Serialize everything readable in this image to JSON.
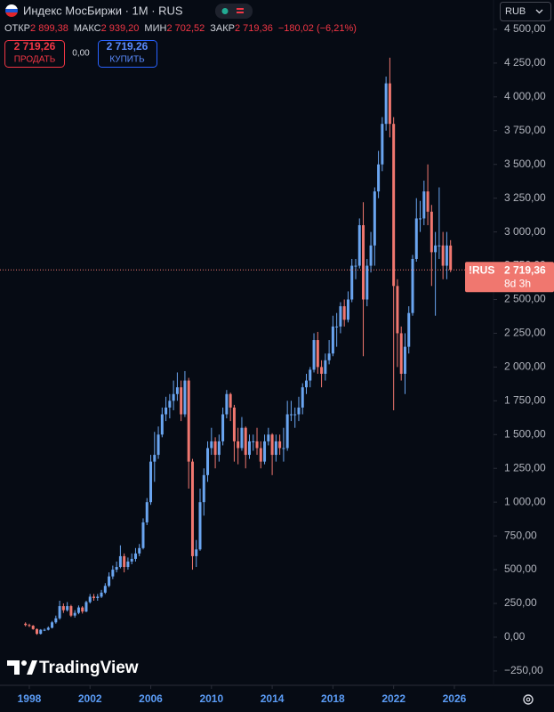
{
  "header": {
    "title": "Индекс МосБиржи · 1М · RUS",
    "ohlc": [
      {
        "label": "ОТКР",
        "value": "2 899,38"
      },
      {
        "label": "МАКС",
        "value": "2 939,20"
      },
      {
        "label": "МИН",
        "value": "2 702,52"
      },
      {
        "label": "ЗАКР",
        "value": "2 719,36"
      }
    ],
    "change": "−180,02 (−6,21%)",
    "sell": {
      "price": "2 719,26",
      "label": "ПРОДАТЬ"
    },
    "spread": "0,00",
    "buy": {
      "price": "2 719,26",
      "label": "КУПИТЬ"
    },
    "currency": "RUB",
    "price_tag": {
      "symbol": "!RUS",
      "price": "2 719,36",
      "countdown": "8d 3h"
    },
    "logo": "TradingView"
  },
  "chart_data": {
    "type": "candlestick",
    "up_color": "#6aa5f0",
    "down_color": "#f0776f",
    "grid": false,
    "x": [
      1997.75,
      1998,
      1998.25,
      1998.5,
      1998.75,
      1999,
      1999.25,
      1999.5,
      1999.75,
      2000,
      2000.25,
      2000.5,
      2000.75,
      2001,
      2001.25,
      2001.5,
      2001.75,
      2002,
      2002.25,
      2002.5,
      2002.75,
      2003,
      2003.25,
      2003.5,
      2003.75,
      2004,
      2004.25,
      2004.5,
      2004.75,
      2005,
      2005.25,
      2005.5,
      2005.75,
      2006,
      2006.25,
      2006.5,
      2006.75,
      2007,
      2007.25,
      2007.5,
      2007.75,
      2008,
      2008.25,
      2008.5,
      2008.75,
      2009,
      2009.25,
      2009.5,
      2009.75,
      2010,
      2010.25,
      2010.5,
      2010.75,
      2011,
      2011.25,
      2011.5,
      2011.75,
      2012,
      2012.25,
      2012.5,
      2012.75,
      2013,
      2013.25,
      2013.5,
      2013.75,
      2014,
      2014.25,
      2014.5,
      2014.75,
      2015,
      2015.25,
      2015.5,
      2015.75,
      2016,
      2016.25,
      2016.5,
      2016.75,
      2017,
      2017.25,
      2017.5,
      2017.75,
      2018,
      2018.25,
      2018.5,
      2018.75,
      2019,
      2019.25,
      2019.5,
      2019.75,
      2020,
      2020.25,
      2020.5,
      2020.75,
      2021,
      2021.25,
      2021.5,
      2021.75,
      2022,
      2022.25,
      2022.5,
      2022.75,
      2023,
      2023.25,
      2023.5,
      2023.75,
      2024,
      2024.25,
      2024.5,
      2024.75,
      2025,
      2025.25,
      2025.5,
      2025.75
    ],
    "open": [
      100,
      90,
      85,
      60,
      25,
      55,
      55,
      70,
      110,
      140,
      230,
      200,
      230,
      160,
      180,
      220,
      190,
      260,
      300,
      290,
      300,
      330,
      380,
      450,
      500,
      520,
      600,
      520,
      560,
      580,
      620,
      660,
      850,
      1000,
      1300,
      1350,
      1500,
      1650,
      1700,
      1750,
      1800,
      1850,
      1650,
      1900,
      1300,
      600,
      650,
      1000,
      1200,
      1400,
      1450,
      1350,
      1450,
      1650,
      1800,
      1700,
      1450,
      1400,
      1550,
      1350,
      1450,
      1450,
      1400,
      1300,
      1450,
      1500,
      1350,
      1450,
      1400,
      1400,
      1650,
      1650,
      1650,
      1700,
      1850,
      1900,
      1980,
      2200,
      2000,
      1950,
      2050,
      2100,
      2300,
      2300,
      2450,
      2350,
      2500,
      2750,
      2750,
      3050,
      2500,
      2750,
      2900,
      3300,
      3500,
      3800,
      4100,
      3800,
      2600,
      2250,
      1950,
      2150,
      2400,
      2800,
      3100,
      3100,
      3300,
      3150,
      2850,
      2900,
      2900,
      2750,
      2899.38
    ],
    "high": [
      110,
      100,
      90,
      65,
      60,
      65,
      80,
      120,
      160,
      270,
      250,
      260,
      240,
      200,
      235,
      230,
      270,
      320,
      320,
      320,
      350,
      400,
      480,
      530,
      560,
      680,
      620,
      590,
      620,
      660,
      690,
      880,
      1030,
      1350,
      1520,
      1560,
      1700,
      1780,
      1800,
      1900,
      1960,
      1900,
      1970,
      1920,
      1320,
      720,
      1100,
      1250,
      1450,
      1550,
      1480,
      1500,
      1700,
      1830,
      1810,
      1720,
      1550,
      1630,
      1560,
      1500,
      1500,
      1550,
      1450,
      1500,
      1550,
      1510,
      1500,
      1500,
      1550,
      1750,
      1750,
      1700,
      1780,
      1880,
      1950,
      2000,
      2250,
      2260,
      2050,
      2100,
      2200,
      2380,
      2400,
      2480,
      2500,
      2560,
      2800,
      2800,
      3100,
      3220,
      2800,
      3000,
      3330,
      3600,
      3850,
      4150,
      4290,
      3850,
      2650,
      2300,
      2250,
      2450,
      2830,
      3250,
      3230,
      3380,
      3500,
      3200,
      3000,
      3330,
      3000,
      3000,
      2939.2
    ],
    "low": [
      80,
      75,
      55,
      18,
      20,
      45,
      50,
      65,
      100,
      130,
      180,
      190,
      150,
      145,
      170,
      175,
      185,
      250,
      270,
      270,
      290,
      320,
      370,
      430,
      480,
      510,
      480,
      500,
      540,
      560,
      600,
      650,
      830,
      980,
      1150,
      1320,
      1480,
      1600,
      1620,
      1680,
      1750,
      1600,
      1630,
      1100,
      500,
      520,
      640,
      900,
      1150,
      1350,
      1250,
      1300,
      1420,
      1620,
      1600,
      1300,
      1280,
      1380,
      1250,
      1320,
      1380,
      1350,
      1250,
      1280,
      1420,
      1200,
      1300,
      1350,
      1300,
      1380,
      1600,
      1550,
      1600,
      1650,
      1800,
      1850,
      1960,
      1950,
      1850,
      1900,
      2020,
      2080,
      2150,
      2250,
      2300,
      2330,
      2480,
      2650,
      2730,
      2080,
      2450,
      2700,
      2750,
      3250,
      3450,
      3750,
      3700,
      1680,
      2000,
      1900,
      1800,
      2100,
      2380,
      2780,
      3000,
      3050,
      3050,
      2600,
      2380,
      2800,
      2650,
      2650,
      2702.52
    ],
    "close": [
      90,
      85,
      60,
      25,
      55,
      55,
      70,
      110,
      140,
      230,
      200,
      230,
      160,
      180,
      220,
      190,
      260,
      300,
      290,
      300,
      330,
      380,
      450,
      500,
      520,
      600,
      520,
      560,
      580,
      620,
      660,
      850,
      1000,
      1300,
      1350,
      1500,
      1650,
      1700,
      1750,
      1800,
      1850,
      1650,
      1900,
      1300,
      600,
      650,
      1000,
      1200,
      1400,
      1450,
      1350,
      1450,
      1650,
      1800,
      1700,
      1450,
      1400,
      1550,
      1350,
      1450,
      1450,
      1400,
      1300,
      1450,
      1500,
      1350,
      1450,
      1400,
      1400,
      1650,
      1650,
      1650,
      1700,
      1850,
      1900,
      1980,
      2200,
      2000,
      1950,
      2050,
      2100,
      2300,
      2300,
      2450,
      2350,
      2500,
      2750,
      2750,
      3050,
      2500,
      2750,
      2900,
      3300,
      3500,
      3800,
      4100,
      3800,
      2600,
      2250,
      1950,
      2150,
      2400,
      2800,
      3100,
      3100,
      3300,
      3150,
      2850,
      2900,
      2900,
      2750,
      2900,
      2719.36
    ],
    "xlim": [
      1996.07,
      2028.58
    ],
    "ylim": [
      -356,
      4717
    ],
    "xticks": [
      1998,
      2002,
      2006,
      2010,
      2014,
      2018,
      2022,
      2026
    ],
    "yticks": [
      {
        "value": -250,
        "label": "−250,00"
      },
      {
        "value": 0,
        "label": "0,00"
      },
      {
        "value": 250,
        "label": "250,00"
      },
      {
        "value": 500,
        "label": "500,00"
      },
      {
        "value": 750,
        "label": "750,00"
      },
      {
        "value": 1000,
        "label": "1 000,00"
      },
      {
        "value": 1250,
        "label": "1 250,00"
      },
      {
        "value": 1500,
        "label": "1 500,00"
      },
      {
        "value": 1750,
        "label": "1 750,00"
      },
      {
        "value": 2000,
        "label": "2 000,00"
      },
      {
        "value": 2250,
        "label": "2 250,00"
      },
      {
        "value": 2500,
        "label": "2 500,00"
      },
      {
        "value": 2750,
        "label": "2 750,00"
      },
      {
        "value": 3000,
        "label": "3 000,00"
      },
      {
        "value": 3250,
        "label": "3 250,00"
      },
      {
        "value": 3500,
        "label": "3 500,00"
      },
      {
        "value": 3750,
        "label": "3 750,00"
      },
      {
        "value": 4000,
        "label": "4 000,00"
      },
      {
        "value": 4250,
        "label": "4 250,00"
      },
      {
        "value": 4500,
        "label": "4 500,00"
      }
    ]
  }
}
